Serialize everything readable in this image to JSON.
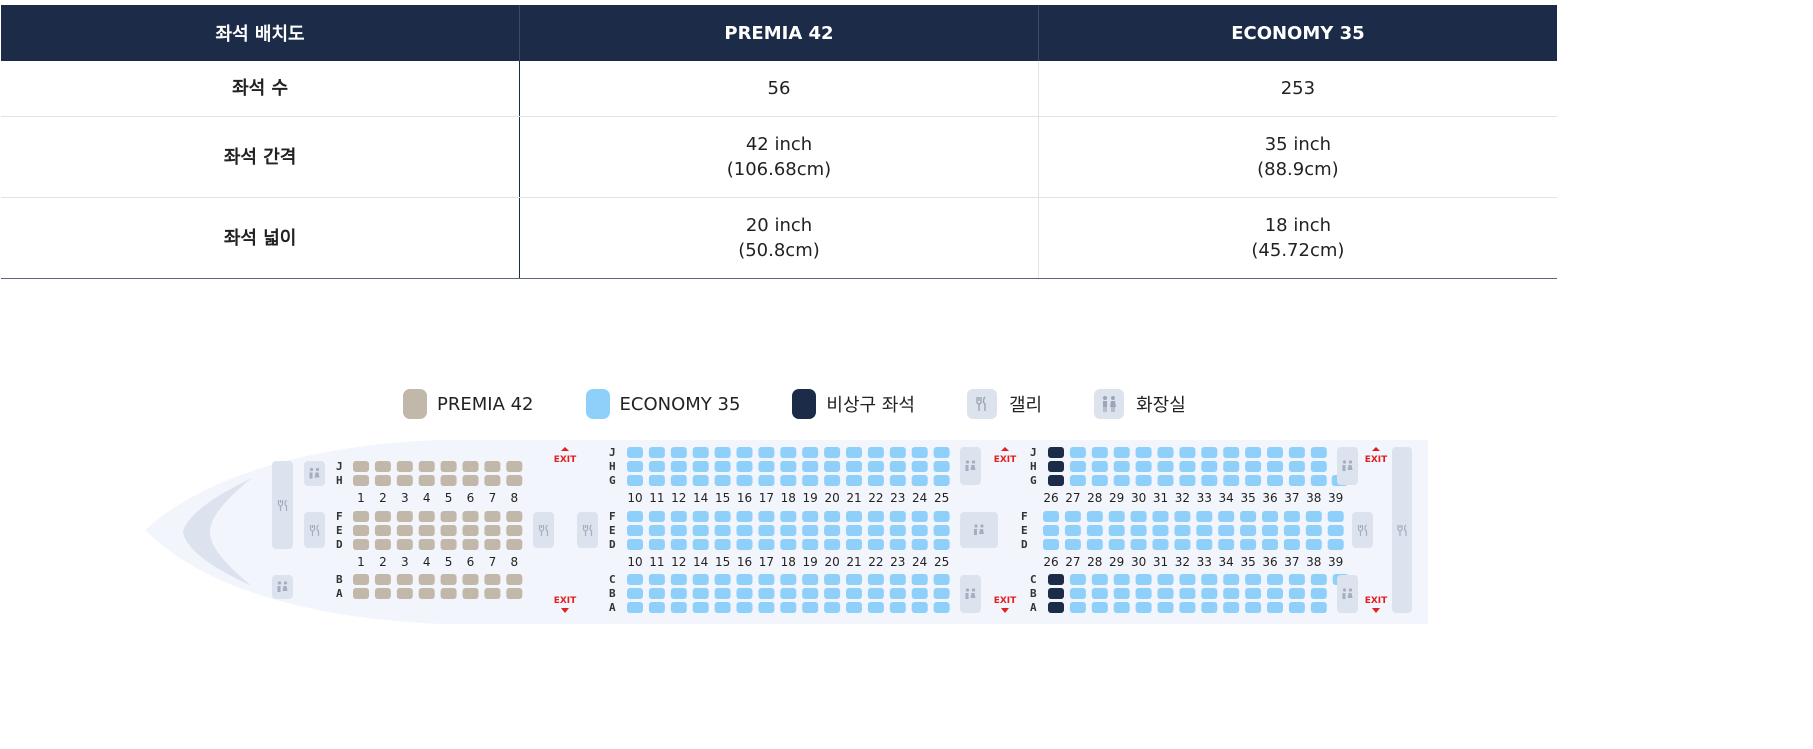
{
  "table": {
    "headers": [
      "좌석 배치도",
      "PREMIA 42",
      "ECONOMY 35"
    ],
    "rows": [
      {
        "label": "좌석 수",
        "premia": [
          "56"
        ],
        "economy": [
          "253"
        ]
      },
      {
        "label": "좌석 간격",
        "premia": [
          "42 inch",
          "(106.68cm)"
        ],
        "economy": [
          "35 inch",
          "(88.9cm)"
        ]
      },
      {
        "label": "좌석 넓이",
        "premia": [
          "20 inch",
          "(50.8cm)"
        ],
        "economy": [
          "18 inch",
          "(45.72cm)"
        ]
      }
    ]
  },
  "legend": {
    "premia": "PREMIA 42",
    "economy": "ECONOMY 35",
    "exit_seat": "비상구 좌석",
    "galley": "갤리",
    "lavatory": "화장실"
  },
  "colors": {
    "premia": "#c2b8a9",
    "economy": "#8fd0fb",
    "exit_seat": "#1c2b48",
    "header": "#1c2b48",
    "exit_text": "#e02020"
  },
  "icons": {
    "galley": "fork-knife-icon",
    "lavatory": "person-pair-icon",
    "exit": "exit-arrow-icon"
  },
  "cabin": {
    "exit_label": "EXIT",
    "premia": {
      "rows": [
        "1",
        "2",
        "3",
        "4",
        "5",
        "6",
        "7",
        "8"
      ],
      "upper_cols": [
        "J",
        "H"
      ],
      "middle_cols": [
        "F",
        "E",
        "D"
      ],
      "lower_cols": [
        "B",
        "A"
      ]
    },
    "economy1": {
      "rows": [
        "10",
        "11",
        "12",
        "14",
        "15",
        "16",
        "17",
        "18",
        "19",
        "20",
        "21",
        "22",
        "23",
        "24",
        "25"
      ],
      "upper_cols": [
        "J",
        "H",
        "G"
      ],
      "middle_cols": [
        "F",
        "E",
        "D"
      ],
      "lower_cols": [
        "C",
        "B",
        "A"
      ]
    },
    "economy2": {
      "rows": [
        "26",
        "27",
        "28",
        "29",
        "30",
        "31",
        "32",
        "33",
        "34",
        "35",
        "36",
        "37",
        "38",
        "39"
      ],
      "upper_cols": [
        "J",
        "H",
        "G"
      ],
      "middle_cols": [
        "F",
        "E",
        "D"
      ],
      "lower_cols": [
        "C",
        "B",
        "A"
      ]
    }
  }
}
